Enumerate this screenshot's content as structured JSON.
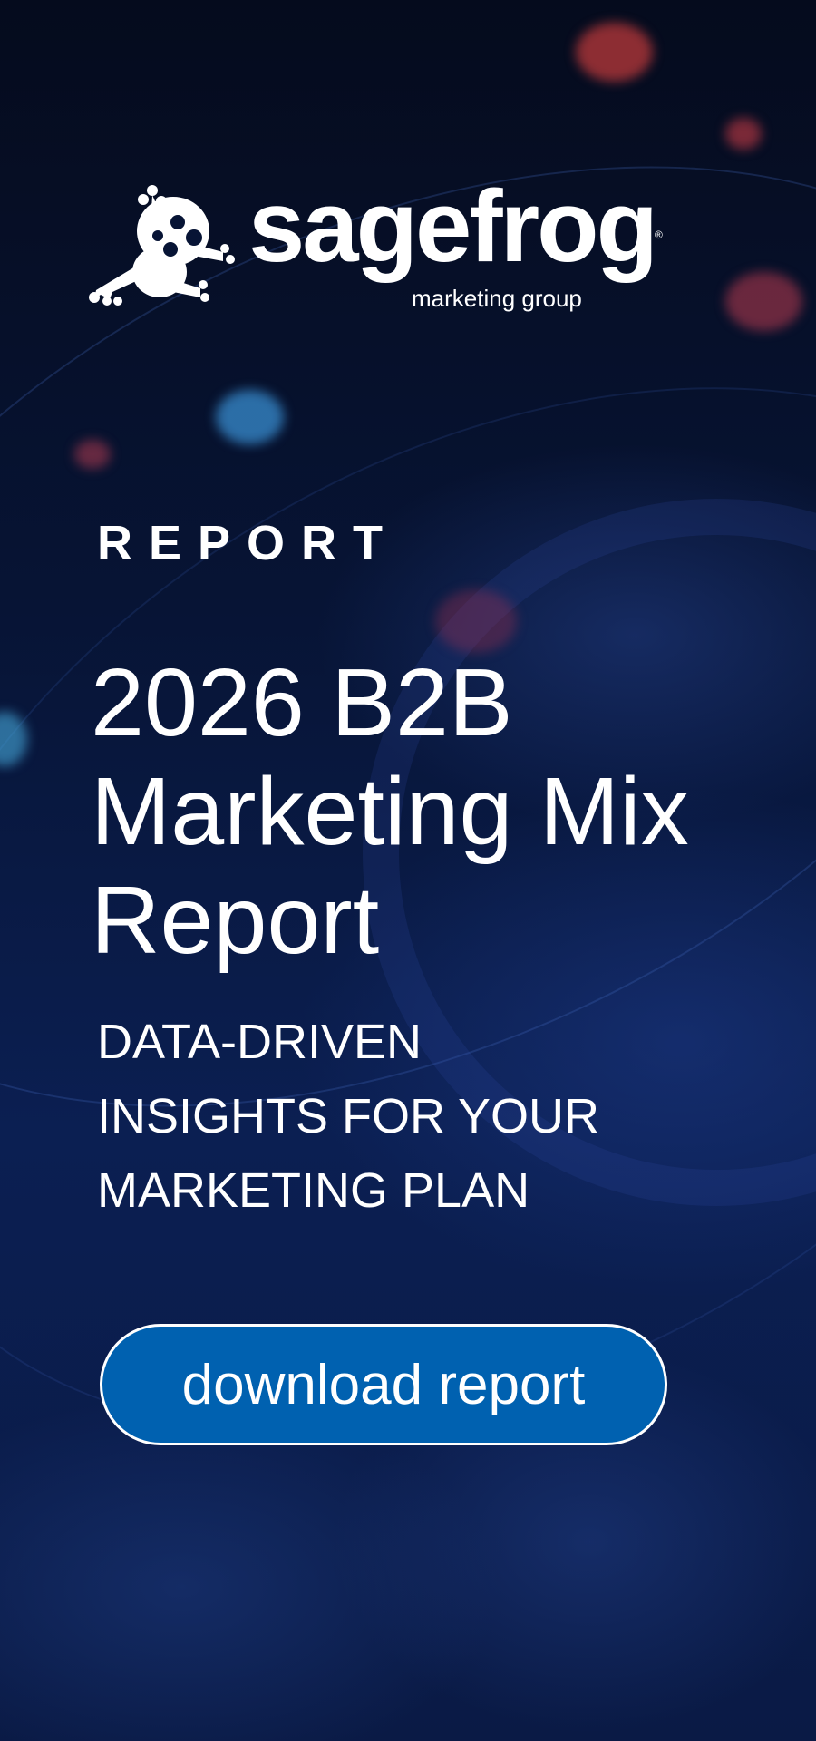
{
  "brand": {
    "name": "sagefrog",
    "tagline": "marketing group",
    "registered_mark": "®",
    "logo_icon": "frog-icon"
  },
  "eyebrow": "REPORT",
  "title_lines": [
    "2026 B2B",
    "Marketing Mix",
    "Report"
  ],
  "subtitle_lines": [
    "DATA-DRIVEN",
    "INSIGHTS FOR YOUR",
    "MARKETING PLAN"
  ],
  "cta": {
    "label": "download report"
  },
  "colors": {
    "background": "#071435",
    "button": "#0061b0",
    "text": "#ffffff"
  }
}
